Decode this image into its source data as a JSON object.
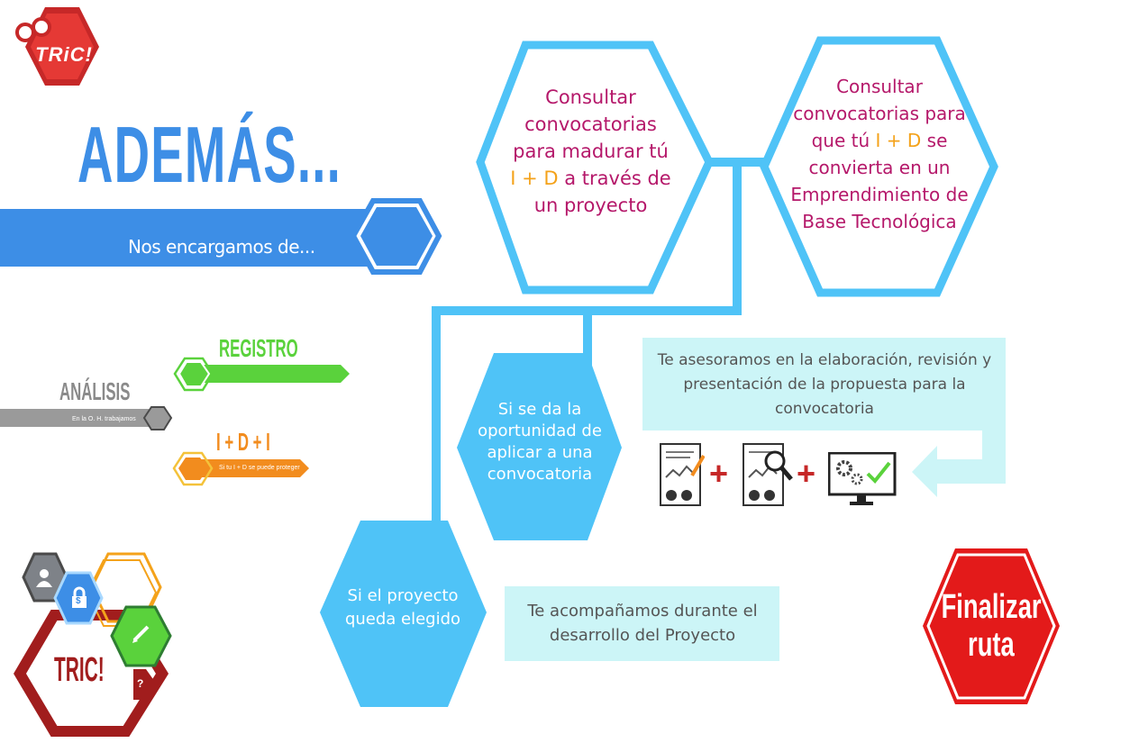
{
  "logo": {
    "text": "TRiC!"
  },
  "title": "ADEMÁS...",
  "subtitle": "Nos encargamos de...",
  "nav": {
    "registro": {
      "label": "REGISTRO"
    },
    "analisis": {
      "label": "ANÁLISIS",
      "sub": "En la O. H. trabajamos"
    },
    "idi": {
      "label": "I + D + I",
      "sub": "Si tu I + D se puede proteger"
    }
  },
  "hex_top_left": {
    "pre": "Consultar convocatorias para madurar tú ",
    "highlight": "I + D",
    "post": " a través de un proyecto"
  },
  "hex_top_right": {
    "pre": "Consultar convocatorias para que tú ",
    "highlight": "I + D",
    "post": " se convierta en un Emprendimiento de Base Tecnológica"
  },
  "hex_mid": {
    "text": "Si se da la oportunidad de aplicar a una convocatoria"
  },
  "hex_low": {
    "text": "Si el proyecto queda elegido"
  },
  "box_asesoramos": {
    "text": "Te asesoramos en la elaboración, revisión y presentación de la propuesta para la convocatoria"
  },
  "box_acompanamos": {
    "text": "Te acompañamos durante el desarrollo del Proyecto"
  },
  "icons": {
    "plus_symbol": "+",
    "icon_names": [
      "document-chart-pencil-icon",
      "document-chart-magnifier-icon",
      "monitor-gears-check-icon"
    ]
  },
  "finalizar": {
    "line1": "Finalizar",
    "line2": "ruta"
  },
  "tric_badge": {
    "text": "TRIC!",
    "question": "?",
    "lock_label": "$"
  },
  "colors": {
    "blue": "#3d8ee6",
    "light_blue": "#4fc3f7",
    "pale_cyan": "#ccf5f7",
    "magenta": "#b5186a",
    "orange": "#f28c1e",
    "yellow": "#f4a21a",
    "green": "#5ad23c",
    "gray": "#9a9a9a",
    "red": "#e31a1a",
    "dark_red": "#a11d1d"
  }
}
